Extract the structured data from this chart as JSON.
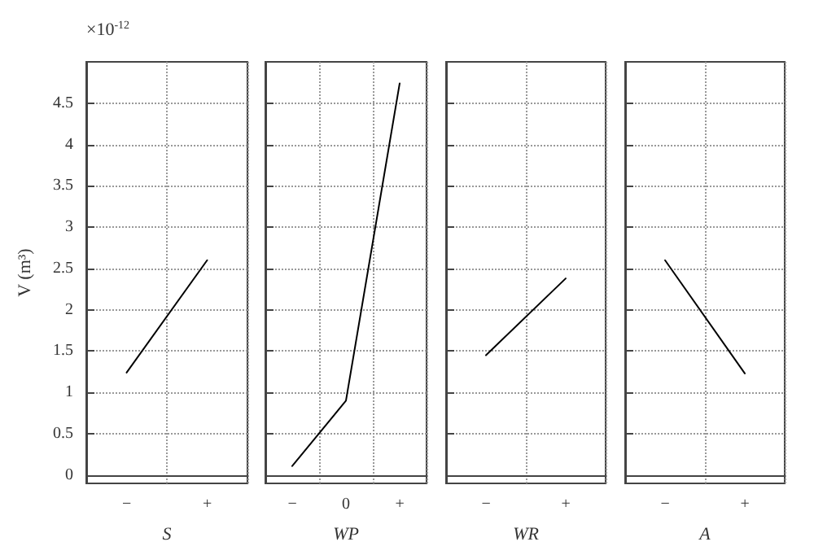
{
  "chart_data": [
    {
      "type": "line",
      "xlabel": "S",
      "ylabel": "V (m³)",
      "annotations": [
        "×10$^{-12}$"
      ],
      "categories": [
        "−",
        "+"
      ],
      "series": [
        {
          "color": "#000000",
          "values": [
            1.24,
            2.6
          ]
        }
      ],
      "ylim": [
        -0.1,
        5
      ],
      "yticks": [
        0,
        0.5,
        1,
        1.5,
        2,
        2.5,
        3,
        3.5,
        4,
        4.5
      ],
      "grid": true,
      "marker": "none",
      "line_style": "solid"
    },
    {
      "type": "line",
      "xlabel": "WP",
      "categories": [
        "−",
        "0",
        "+"
      ],
      "series": [
        {
          "color": "#000000",
          "values": [
            0.11,
            0.9,
            4.74
          ]
        }
      ],
      "ylim": [
        -0.1,
        5
      ],
      "yticks": [
        0,
        0.5,
        1,
        1.5,
        2,
        2.5,
        3,
        3.5,
        4,
        4.5
      ],
      "grid": true,
      "tick_labels": "x",
      "marker": "none",
      "line_style": "solid"
    },
    {
      "type": "line",
      "xlabel": "WR",
      "categories": [
        "−",
        "+"
      ],
      "series": [
        {
          "color": "#000000",
          "values": [
            1.45,
            2.38
          ]
        }
      ],
      "ylim": [
        -0.1,
        5
      ],
      "yticks": [
        0,
        0.5,
        1,
        1.5,
        2,
        2.5,
        3,
        3.5,
        4,
        4.5
      ],
      "grid": true,
      "tick_labels": "x",
      "marker": "none",
      "line_style": "solid"
    },
    {
      "type": "line",
      "xlabel": "A",
      "categories": [
        "−",
        "+"
      ],
      "series": [
        {
          "color": "#000000",
          "values": [
            2.6,
            1.23
          ]
        }
      ],
      "ylim": [
        -0.1,
        5
      ],
      "yticks": [
        0,
        0.5,
        1,
        1.5,
        2,
        2.5,
        3,
        3.5,
        4,
        4.5
      ],
      "grid": true,
      "tick_labels": "x",
      "marker": "none",
      "line_style": "solid"
    }
  ]
}
